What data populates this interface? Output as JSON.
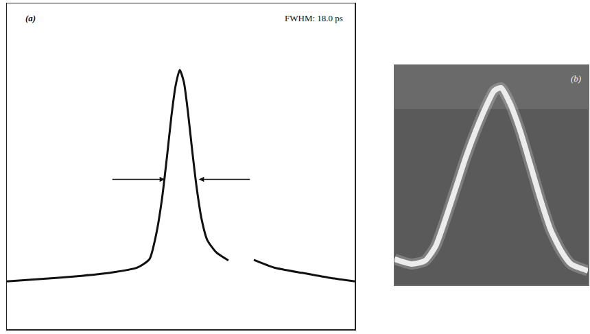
{
  "chart_data": [
    {
      "type": "line",
      "label": "(a)",
      "annotation": "FWHM: 18.0 ps",
      "x": [
        0,
        9.9,
        19.7,
        29.6,
        37.5,
        41.0,
        43.0,
        44.6,
        46.0,
        47.3,
        48.5,
        49.7,
        50.9,
        52.1,
        53.3,
        54.6,
        56.0,
        57.6,
        60.2,
        63.7,
        67.0,
        71.0,
        76.9,
        84.8,
        92.7,
        100
      ],
      "values": [
        14.7,
        15.4,
        16.2,
        17.3,
        18.9,
        21.5,
        29.5,
        40,
        52.6,
        65.3,
        74.7,
        79.6,
        75.8,
        66.3,
        54.7,
        43.2,
        33.7,
        27.4,
        23.6,
        21.1,
        null,
        21.3,
        18.9,
        17.3,
        15.8,
        14.7
      ],
      "color": "#111111",
      "half_max": 46,
      "fwhm_x": [
        45.4,
        55.2
      ],
      "xlim": [
        0,
        100
      ],
      "ylim": [
        0,
        100
      ],
      "tick_labels": false,
      "grid": false
    },
    {
      "type": "line",
      "label": "(b)",
      "x": [
        0,
        8.8,
        15.8,
        21.1,
        26.3,
        31.6,
        36.8,
        42.1,
        47.4,
        51.6,
        55.1,
        59.6,
        64.9,
        70.2,
        75.4,
        80.7,
        86.0,
        91.2,
        100
      ],
      "values": [
        11.6,
        9.4,
        10.9,
        17.2,
        29.7,
        43.8,
        57.8,
        70.3,
        81.3,
        88.4,
        89.7,
        82.8,
        70.3,
        54.7,
        39.1,
        25,
        15.6,
        9.4,
        6.3
      ],
      "color": "#ececec",
      "xlim": [
        0,
        100
      ],
      "ylim": [
        0,
        100
      ],
      "tick_labels": false,
      "grid": false
    }
  ]
}
